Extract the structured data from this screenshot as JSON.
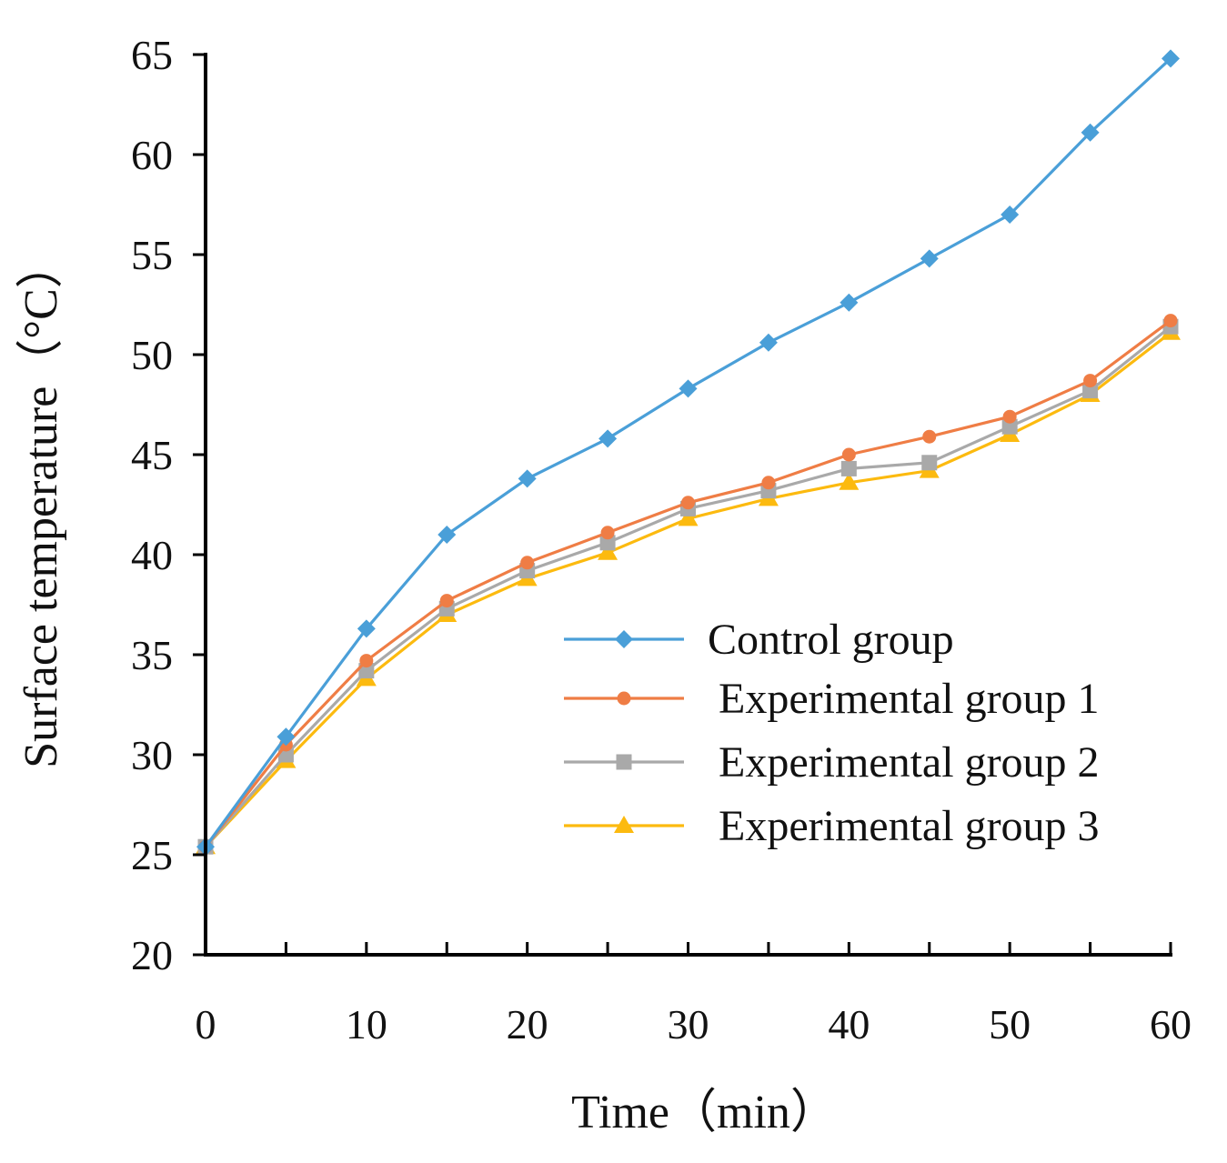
{
  "chart_data": {
    "type": "line",
    "xlabel": "Time（min）",
    "ylabel": "Surface temperature（°C）",
    "xlim": [
      0,
      60
    ],
    "ylim": [
      20,
      65
    ],
    "xticks": [
      0,
      10,
      20,
      30,
      40,
      50,
      60
    ],
    "yticks": [
      20,
      25,
      30,
      35,
      40,
      45,
      50,
      55,
      60,
      65
    ],
    "minor_xticks": [
      5,
      15,
      25,
      35,
      45,
      55
    ],
    "grid": false,
    "legend_position": "center-right",
    "x": [
      0,
      5,
      10,
      15,
      20,
      25,
      30,
      35,
      40,
      45,
      50,
      55,
      60
    ],
    "series": [
      {
        "name": "Control group",
        "color": "#4a9fd8",
        "marker": "diamond",
        "values": [
          25.4,
          30.9,
          36.3,
          41.0,
          43.8,
          45.8,
          48.3,
          50.6,
          52.6,
          54.8,
          57.0,
          61.1,
          64.8
        ]
      },
      {
        "name": "Experimental group 1",
        "color": "#ef7d45",
        "marker": "circle",
        "values": [
          25.4,
          30.5,
          34.7,
          37.7,
          39.6,
          41.1,
          42.6,
          43.6,
          45.0,
          45.9,
          46.9,
          48.7,
          51.7
        ]
      },
      {
        "name": "Experimental group 2",
        "color": "#a9a9a9",
        "marker": "square",
        "values": [
          25.4,
          30.0,
          34.2,
          37.3,
          39.2,
          40.6,
          42.3,
          43.2,
          44.3,
          44.6,
          46.4,
          48.2,
          51.4
        ]
      },
      {
        "name": "Experimental group 3",
        "color": "#fcba0f",
        "marker": "triangle",
        "values": [
          25.4,
          29.7,
          33.8,
          37.0,
          38.8,
          40.1,
          41.8,
          42.8,
          43.6,
          44.2,
          46.0,
          48.0,
          51.1
        ]
      }
    ]
  }
}
